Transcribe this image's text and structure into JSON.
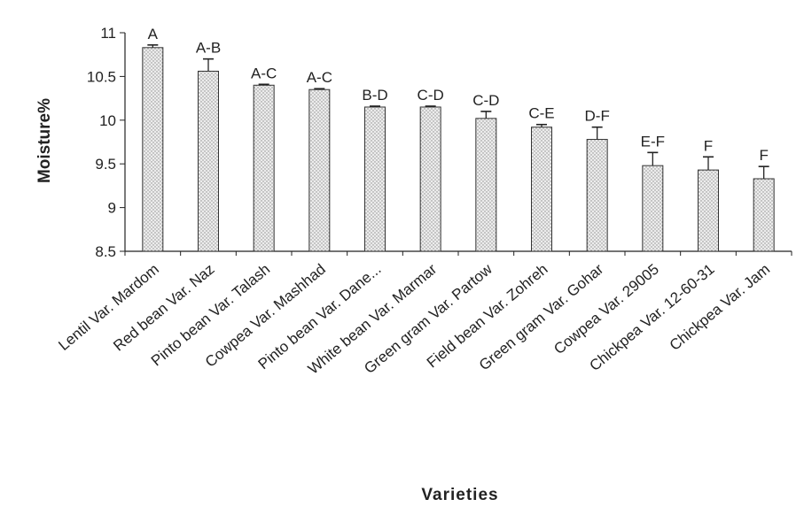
{
  "chart_data": {
    "type": "bar",
    "xlabel": "Varieties",
    "ylabel": "Moisture%",
    "ylim": [
      8.5,
      11
    ],
    "yticks": [
      "8.5",
      "9",
      "9.5",
      "10",
      "10.5",
      "11"
    ],
    "grid": false,
    "legend": "none",
    "bar_color": "#d9d9d9",
    "categories": [
      "Lentil Var. Mardom",
      "Red bean Var. Naz",
      "Pinto bean Var. Talash",
      "Cowpea Var. Mashhad",
      "Pinto bean Var. Dane...",
      "White bean Var. Marmar",
      "Green gram Var. Partow",
      "Field bean Var. Zohreh",
      "Green gram Var. Gohar",
      "Cowpea Var. 29005",
      "Chickpea Var. 12-60-31",
      "Chickpea Var. Jam"
    ],
    "values": [
      10.83,
      10.56,
      10.4,
      10.35,
      10.15,
      10.15,
      10.02,
      9.92,
      9.78,
      9.48,
      9.43,
      9.33
    ],
    "errors": [
      0.03,
      0.14,
      0.01,
      0.01,
      0.01,
      0.01,
      0.08,
      0.03,
      0.14,
      0.15,
      0.15,
      0.14
    ],
    "annotations": [
      "A",
      "A-B",
      "A-C",
      "A-C",
      "B-D",
      "C-D",
      "C-D",
      "C-E",
      "D-F",
      "E-F",
      "F",
      "F"
    ]
  }
}
